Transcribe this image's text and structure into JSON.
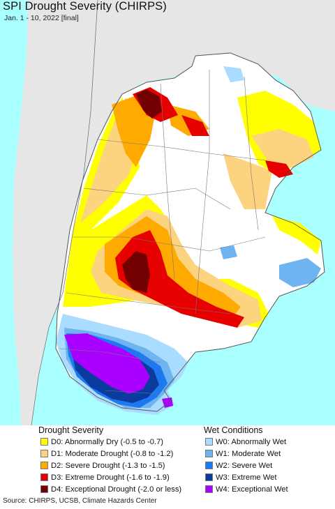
{
  "title": "SPI Drought Severity (CHIRPS)",
  "subtitle": "Jan. 1 - 10, 2022 [final]",
  "legend": {
    "drought": {
      "heading": "Drought Severity",
      "items": [
        {
          "label": "D0: Abnormally Dry (-0.5 to -0.7)",
          "color": "#ffff00"
        },
        {
          "label": "D1: Moderate Drought (-0.8 to -1.2)",
          "color": "#fcd37f"
        },
        {
          "label": "D2: Severe Drought (-1.3 to -1.5)",
          "color": "#ffaa00"
        },
        {
          "label": "D3: Extreme Drought (-1.6 to -1.9)",
          "color": "#e60000"
        },
        {
          "label": "D4: Exceptional Drought (-2.0 or less)",
          "color": "#730000"
        }
      ]
    },
    "wet": {
      "heading": "Wet Conditions",
      "items": [
        {
          "label": "W0: Abnormally Wet",
          "color": "#aadcff"
        },
        {
          "label": "W1: Moderate Wet",
          "color": "#6eb4f0"
        },
        {
          "label": "W2: Severe Wet",
          "color": "#1e78f0"
        },
        {
          "label": "W3: Extreme Wet",
          "color": "#0a3ca0"
        },
        {
          "label": "W4: Exceptional Wet",
          "color": "#aa00ff"
        }
      ]
    }
  },
  "source": "Source: CHIRPS, UCSB, Climate Hazards Center",
  "colors": {
    "ocean": "#aaffff",
    "neighbor_land": "#e6e6e6",
    "region_land": "#ffffff"
  }
}
